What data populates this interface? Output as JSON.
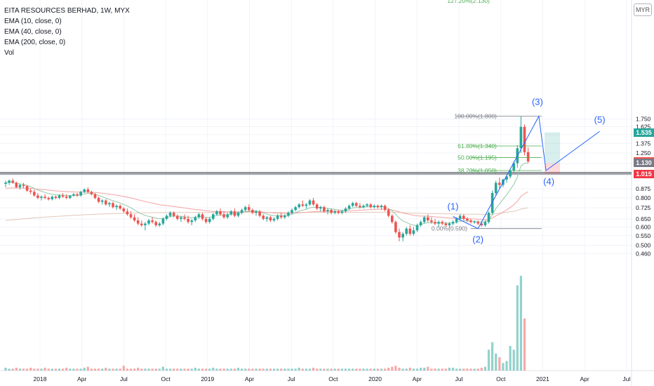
{
  "legend": {
    "title": "EITA RESOURCES BERHAD, 1W, MYX",
    "ema10": "EMA (10, close, 0)",
    "ema40": "EMA (40, close, 0)",
    "ema200": "EMA (200, close, 0)",
    "vol": "Vol"
  },
  "currency": "MYR",
  "price_tags": [
    {
      "label": "1.535",
      "value": 1.535,
      "color": "#26a69a"
    },
    {
      "label": "1.150",
      "value": 1.15,
      "color": "#ef5350"
    },
    {
      "label": "1.130",
      "value": 1.13,
      "color": "#787b86"
    },
    {
      "label": "1.015",
      "value": 1.015,
      "color": "#f23645"
    }
  ],
  "chart_data": {
    "type": "candlestick",
    "y_scale": "log",
    "y_ticks": [
      "0.460",
      "0.500",
      "0.550",
      "0.600",
      "0.650",
      "0.725",
      "0.800",
      "0.875",
      "1.000",
      "1.125",
      "1.250",
      "1.375",
      "1.500",
      "1.625",
      "1.750"
    ],
    "x_ticks": [
      "2018",
      "Apr",
      "Jul",
      "Oct",
      "2019",
      "Apr",
      "Jul",
      "Oct",
      "2020",
      "Apr",
      "Jul",
      "Oct",
      "2021",
      "Apr",
      "Jul"
    ],
    "candles_ohlc": [
      [
        0.92,
        0.95,
        0.89,
        0.93
      ],
      [
        0.93,
        0.96,
        0.91,
        0.95
      ],
      [
        0.95,
        0.97,
        0.92,
        0.93
      ],
      [
        0.93,
        0.94,
        0.88,
        0.89
      ],
      [
        0.89,
        0.92,
        0.87,
        0.91
      ],
      [
        0.91,
        0.93,
        0.88,
        0.9
      ],
      [
        0.9,
        0.91,
        0.85,
        0.86
      ],
      [
        0.86,
        0.88,
        0.83,
        0.85
      ],
      [
        0.85,
        0.87,
        0.81,
        0.82
      ],
      [
        0.82,
        0.84,
        0.79,
        0.8
      ],
      [
        0.8,
        0.82,
        0.78,
        0.81
      ],
      [
        0.81,
        0.83,
        0.79,
        0.8
      ],
      [
        0.8,
        0.81,
        0.78,
        0.79
      ],
      [
        0.79,
        0.82,
        0.78,
        0.81
      ],
      [
        0.81,
        0.82,
        0.79,
        0.8
      ],
      [
        0.8,
        0.83,
        0.79,
        0.82
      ],
      [
        0.82,
        0.84,
        0.8,
        0.81
      ],
      [
        0.81,
        0.83,
        0.79,
        0.8
      ],
      [
        0.8,
        0.82,
        0.79,
        0.82
      ],
      [
        0.82,
        0.84,
        0.81,
        0.83
      ],
      [
        0.83,
        0.84,
        0.81,
        0.82
      ],
      [
        0.82,
        0.86,
        0.81,
        0.85
      ],
      [
        0.85,
        0.88,
        0.84,
        0.87
      ],
      [
        0.87,
        0.89,
        0.84,
        0.85
      ],
      [
        0.85,
        0.86,
        0.82,
        0.83
      ],
      [
        0.83,
        0.84,
        0.79,
        0.8
      ],
      [
        0.8,
        0.81,
        0.76,
        0.77
      ],
      [
        0.77,
        0.79,
        0.75,
        0.78
      ],
      [
        0.78,
        0.79,
        0.74,
        0.75
      ],
      [
        0.75,
        0.77,
        0.73,
        0.76
      ],
      [
        0.76,
        0.77,
        0.72,
        0.73
      ],
      [
        0.73,
        0.75,
        0.71,
        0.74
      ],
      [
        0.74,
        0.75,
        0.71,
        0.72
      ],
      [
        0.72,
        0.73,
        0.69,
        0.7
      ],
      [
        0.7,
        0.72,
        0.67,
        0.68
      ],
      [
        0.68,
        0.7,
        0.65,
        0.66
      ],
      [
        0.66,
        0.68,
        0.63,
        0.64
      ],
      [
        0.64,
        0.66,
        0.61,
        0.62
      ],
      [
        0.62,
        0.64,
        0.6,
        0.61
      ],
      [
        0.61,
        0.63,
        0.58,
        0.62
      ],
      [
        0.62,
        0.65,
        0.61,
        0.64
      ],
      [
        0.64,
        0.66,
        0.62,
        0.63
      ],
      [
        0.63,
        0.64,
        0.6,
        0.61
      ],
      [
        0.61,
        0.63,
        0.6,
        0.62
      ],
      [
        0.62,
        0.66,
        0.61,
        0.65
      ],
      [
        0.65,
        0.68,
        0.64,
        0.67
      ],
      [
        0.67,
        0.7,
        0.66,
        0.69
      ],
      [
        0.69,
        0.7,
        0.66,
        0.67
      ],
      [
        0.67,
        0.68,
        0.64,
        0.65
      ],
      [
        0.65,
        0.67,
        0.63,
        0.66
      ],
      [
        0.66,
        0.68,
        0.64,
        0.65
      ],
      [
        0.65,
        0.67,
        0.62,
        0.63
      ],
      [
        0.63,
        0.65,
        0.61,
        0.64
      ],
      [
        0.64,
        0.67,
        0.63,
        0.66
      ],
      [
        0.66,
        0.69,
        0.65,
        0.68
      ],
      [
        0.68,
        0.69,
        0.64,
        0.65
      ],
      [
        0.65,
        0.66,
        0.62,
        0.63
      ],
      [
        0.63,
        0.66,
        0.62,
        0.65
      ],
      [
        0.65,
        0.69,
        0.64,
        0.68
      ],
      [
        0.68,
        0.71,
        0.67,
        0.7
      ],
      [
        0.7,
        0.72,
        0.67,
        0.68
      ],
      [
        0.68,
        0.7,
        0.65,
        0.66
      ],
      [
        0.66,
        0.69,
        0.65,
        0.68
      ],
      [
        0.68,
        0.71,
        0.67,
        0.7
      ],
      [
        0.7,
        0.72,
        0.66,
        0.67
      ],
      [
        0.67,
        0.7,
        0.66,
        0.69
      ],
      [
        0.69,
        0.72,
        0.68,
        0.71
      ],
      [
        0.71,
        0.74,
        0.7,
        0.73
      ],
      [
        0.73,
        0.75,
        0.7,
        0.71
      ],
      [
        0.71,
        0.72,
        0.68,
        0.69
      ],
      [
        0.69,
        0.71,
        0.67,
        0.7
      ],
      [
        0.7,
        0.71,
        0.66,
        0.67
      ],
      [
        0.67,
        0.68,
        0.64,
        0.65
      ],
      [
        0.65,
        0.67,
        0.63,
        0.66
      ],
      [
        0.66,
        0.67,
        0.63,
        0.64
      ],
      [
        0.64,
        0.66,
        0.63,
        0.65
      ],
      [
        0.65,
        0.68,
        0.64,
        0.67
      ],
      [
        0.67,
        0.69,
        0.65,
        0.66
      ],
      [
        0.66,
        0.68,
        0.65,
        0.67
      ],
      [
        0.67,
        0.7,
        0.66,
        0.69
      ],
      [
        0.69,
        0.72,
        0.68,
        0.71
      ],
      [
        0.71,
        0.74,
        0.7,
        0.73
      ],
      [
        0.73,
        0.76,
        0.72,
        0.75
      ],
      [
        0.75,
        0.78,
        0.73,
        0.74
      ],
      [
        0.74,
        0.76,
        0.72,
        0.75
      ],
      [
        0.75,
        0.79,
        0.74,
        0.78
      ],
      [
        0.78,
        0.8,
        0.74,
        0.75
      ],
      [
        0.75,
        0.76,
        0.71,
        0.72
      ],
      [
        0.72,
        0.74,
        0.7,
        0.73
      ],
      [
        0.73,
        0.74,
        0.69,
        0.7
      ],
      [
        0.7,
        0.72,
        0.68,
        0.71
      ],
      [
        0.71,
        0.72,
        0.68,
        0.69
      ],
      [
        0.69,
        0.71,
        0.68,
        0.7
      ],
      [
        0.7,
        0.71,
        0.68,
        0.69
      ],
      [
        0.69,
        0.71,
        0.68,
        0.7
      ],
      [
        0.7,
        0.73,
        0.69,
        0.72
      ],
      [
        0.72,
        0.75,
        0.71,
        0.74
      ],
      [
        0.74,
        0.77,
        0.73,
        0.76
      ],
      [
        0.76,
        0.77,
        0.73,
        0.74
      ],
      [
        0.74,
        0.76,
        0.72,
        0.73
      ],
      [
        0.73,
        0.75,
        0.72,
        0.74
      ],
      [
        0.74,
        0.76,
        0.73,
        0.75
      ],
      [
        0.75,
        0.76,
        0.72,
        0.73
      ],
      [
        0.73,
        0.75,
        0.72,
        0.74
      ],
      [
        0.74,
        0.75,
        0.72,
        0.73
      ],
      [
        0.73,
        0.75,
        0.71,
        0.74
      ],
      [
        0.74,
        0.75,
        0.7,
        0.71
      ],
      [
        0.71,
        0.72,
        0.66,
        0.67
      ],
      [
        0.67,
        0.68,
        0.62,
        0.63
      ],
      [
        0.63,
        0.64,
        0.56,
        0.57
      ],
      [
        0.57,
        0.59,
        0.52,
        0.54
      ],
      [
        0.54,
        0.57,
        0.52,
        0.56
      ],
      [
        0.56,
        0.6,
        0.55,
        0.59
      ],
      [
        0.59,
        0.61,
        0.55,
        0.56
      ],
      [
        0.56,
        0.6,
        0.55,
        0.58
      ],
      [
        0.58,
        0.62,
        0.57,
        0.61
      ],
      [
        0.61,
        0.64,
        0.6,
        0.63
      ],
      [
        0.63,
        0.67,
        0.62,
        0.66
      ],
      [
        0.66,
        0.68,
        0.63,
        0.64
      ],
      [
        0.64,
        0.66,
        0.62,
        0.63
      ],
      [
        0.63,
        0.65,
        0.61,
        0.62
      ],
      [
        0.62,
        0.64,
        0.6,
        0.63
      ],
      [
        0.63,
        0.64,
        0.61,
        0.62
      ],
      [
        0.62,
        0.63,
        0.6,
        0.61
      ],
      [
        0.61,
        0.63,
        0.59,
        0.62
      ],
      [
        0.62,
        0.64,
        0.61,
        0.63
      ],
      [
        0.63,
        0.66,
        0.62,
        0.65
      ],
      [
        0.65,
        0.68,
        0.64,
        0.67
      ],
      [
        0.67,
        0.68,
        0.64,
        0.65
      ],
      [
        0.65,
        0.66,
        0.63,
        0.64
      ],
      [
        0.64,
        0.65,
        0.62,
        0.63
      ],
      [
        0.63,
        0.64,
        0.62,
        0.63
      ],
      [
        0.63,
        0.64,
        0.61,
        0.62
      ],
      [
        0.62,
        0.63,
        0.6,
        0.61
      ],
      [
        0.61,
        0.64,
        0.6,
        0.63
      ],
      [
        0.63,
        0.7,
        0.62,
        0.69
      ],
      [
        0.69,
        0.86,
        0.68,
        0.84
      ],
      [
        0.84,
        0.95,
        0.82,
        0.93
      ],
      [
        0.93,
        0.98,
        0.88,
        0.91
      ],
      [
        0.91,
        0.97,
        0.89,
        0.96
      ],
      [
        0.96,
        1.0,
        0.93,
        0.99
      ],
      [
        0.99,
        1.06,
        0.97,
        1.05
      ],
      [
        1.05,
        1.15,
        1.03,
        1.13
      ],
      [
        1.13,
        1.35,
        1.08,
        1.31
      ],
      [
        1.31,
        1.8,
        1.25,
        1.62
      ],
      [
        1.62,
        1.66,
        1.22,
        1.26
      ],
      [
        1.26,
        1.32,
        1.13,
        1.15
      ]
    ],
    "volume": [
      3,
      2,
      2,
      3,
      2,
      2,
      2,
      3,
      2,
      2,
      2,
      3,
      2,
      2,
      2,
      2,
      2,
      3,
      2,
      2,
      2,
      2,
      3,
      4,
      2,
      2,
      2,
      2,
      3,
      2,
      2,
      2,
      2,
      5,
      2,
      2,
      2,
      3,
      2,
      2,
      2,
      2,
      2,
      2,
      4,
      2,
      2,
      2,
      2,
      2,
      2,
      2,
      2,
      3,
      2,
      2,
      2,
      2,
      3,
      2,
      2,
      2,
      2,
      2,
      2,
      3,
      2,
      2,
      2,
      2,
      2,
      2,
      2,
      2,
      2,
      2,
      2,
      2,
      2,
      2,
      2,
      2,
      3,
      2,
      2,
      2,
      3,
      2,
      2,
      2,
      2,
      2,
      2,
      2,
      2,
      2,
      2,
      2,
      2,
      2,
      2,
      2,
      2,
      2,
      2,
      2,
      2,
      3,
      4,
      5,
      3,
      2,
      2,
      3,
      2,
      2,
      3,
      3,
      4,
      2,
      2,
      2,
      2,
      2,
      3,
      3,
      2,
      2,
      2,
      2,
      2,
      2,
      2,
      3,
      4,
      22,
      30,
      18,
      14,
      8,
      10,
      26,
      22,
      90,
      100,
      55
    ],
    "ema10": [
      0.93,
      0.935,
      0.934,
      0.925,
      0.92,
      0.915,
      0.905,
      0.895,
      0.88,
      0.865,
      0.855,
      0.845,
      0.835,
      0.83,
      0.825,
      0.825,
      0.822,
      0.818,
      0.818,
      0.82,
      0.82,
      0.825,
      0.832,
      0.837,
      0.835,
      0.83,
      0.82,
      0.81,
      0.798,
      0.788,
      0.778,
      0.77,
      0.76,
      0.75,
      0.738,
      0.725,
      0.71,
      0.695,
      0.682,
      0.672,
      0.666,
      0.661,
      0.654,
      0.65,
      0.652,
      0.658,
      0.665,
      0.668,
      0.667,
      0.666,
      0.664,
      0.66,
      0.658,
      0.66,
      0.665,
      0.664,
      0.66,
      0.66,
      0.665,
      0.672,
      0.676,
      0.675,
      0.676,
      0.681,
      0.682,
      0.685,
      0.692,
      0.7,
      0.703,
      0.702,
      0.702,
      0.696,
      0.688,
      0.682,
      0.674,
      0.671,
      0.672,
      0.671,
      0.671,
      0.674,
      0.68,
      0.69,
      0.702,
      0.708,
      0.715,
      0.725,
      0.73,
      0.728,
      0.729,
      0.724,
      0.721,
      0.717,
      0.714,
      0.71,
      0.708,
      0.71,
      0.716,
      0.724,
      0.727,
      0.728,
      0.73,
      0.733,
      0.733,
      0.734,
      0.733,
      0.734,
      0.731,
      0.72,
      0.704,
      0.68,
      0.654,
      0.637,
      0.628,
      0.617,
      0.61,
      0.609,
      0.613,
      0.622,
      0.625,
      0.626,
      0.625,
      0.626,
      0.626,
      0.623,
      0.623,
      0.624,
      0.628,
      0.635,
      0.637,
      0.637,
      0.635,
      0.634,
      0.632,
      0.63,
      0.63,
      0.641,
      0.677,
      0.72,
      0.754,
      0.79,
      0.826,
      0.867,
      0.915,
      0.985,
      1.1,
      1.129,
      1.133
    ],
    "ema40": [
      0.88,
      0.882,
      0.883,
      0.883,
      0.883,
      0.882,
      0.881,
      0.879,
      0.877,
      0.873,
      0.87,
      0.867,
      0.864,
      0.861,
      0.858,
      0.856,
      0.854,
      0.852,
      0.85,
      0.849,
      0.847,
      0.847,
      0.847,
      0.847,
      0.846,
      0.844,
      0.841,
      0.838,
      0.834,
      0.83,
      0.826,
      0.822,
      0.817,
      0.812,
      0.806,
      0.8,
      0.793,
      0.786,
      0.779,
      0.772,
      0.766,
      0.76,
      0.754,
      0.748,
      0.744,
      0.741,
      0.738,
      0.735,
      0.731,
      0.728,
      0.724,
      0.72,
      0.716,
      0.713,
      0.711,
      0.708,
      0.704,
      0.702,
      0.7,
      0.7,
      0.699,
      0.698,
      0.697,
      0.697,
      0.696,
      0.696,
      0.697,
      0.698,
      0.699,
      0.698,
      0.698,
      0.697,
      0.695,
      0.693,
      0.691,
      0.689,
      0.688,
      0.687,
      0.686,
      0.686,
      0.687,
      0.688,
      0.69,
      0.692,
      0.693,
      0.696,
      0.698,
      0.699,
      0.7,
      0.7,
      0.701,
      0.701,
      0.701,
      0.701,
      0.701,
      0.702,
      0.704,
      0.706,
      0.707,
      0.708,
      0.709,
      0.711,
      0.712,
      0.713,
      0.714,
      0.715,
      0.715,
      0.713,
      0.71,
      0.704,
      0.696,
      0.689,
      0.684,
      0.678,
      0.673,
      0.67,
      0.668,
      0.668,
      0.667,
      0.665,
      0.663,
      0.661,
      0.659,
      0.657,
      0.655,
      0.654,
      0.653,
      0.653,
      0.653,
      0.652,
      0.65,
      0.649,
      0.647,
      0.645,
      0.644,
      0.646,
      0.655,
      0.669,
      0.681,
      0.695,
      0.71,
      0.727,
      0.747,
      0.774,
      0.813,
      0.835,
      0.85
    ],
    "ema200": [
      0.64,
      0.642,
      0.644,
      0.646,
      0.648,
      0.65,
      0.652,
      0.654,
      0.656,
      0.658,
      0.66,
      0.661,
      0.663,
      0.664,
      0.666,
      0.667,
      0.669,
      0.67,
      0.671,
      0.673,
      0.674,
      0.675,
      0.677,
      0.678,
      0.679,
      0.68,
      0.681,
      0.682,
      0.683,
      0.684,
      0.685,
      0.686,
      0.686,
      0.687,
      0.688,
      0.688,
      0.689,
      0.689,
      0.69,
      0.69,
      0.69,
      0.691,
      0.691,
      0.691,
      0.691,
      0.691,
      0.692,
      0.692,
      0.692,
      0.692,
      0.692,
      0.692,
      0.692,
      0.692,
      0.692,
      0.692,
      0.692,
      0.692,
      0.692,
      0.692,
      0.692,
      0.692,
      0.692,
      0.692,
      0.692,
      0.692,
      0.692,
      0.692,
      0.692,
      0.692,
      0.692,
      0.692,
      0.692,
      0.692,
      0.692,
      0.692,
      0.692,
      0.692,
      0.692,
      0.692,
      0.692,
      0.692,
      0.692,
      0.692,
      0.692,
      0.692,
      0.693,
      0.693,
      0.693,
      0.693,
      0.693,
      0.693,
      0.693,
      0.693,
      0.693,
      0.693,
      0.693,
      0.693,
      0.694,
      0.694,
      0.694,
      0.694,
      0.694,
      0.694,
      0.694,
      0.695,
      0.695,
      0.694,
      0.694,
      0.693,
      0.692,
      0.691,
      0.69,
      0.689,
      0.688,
      0.687,
      0.687,
      0.686,
      0.686,
      0.685,
      0.685,
      0.684,
      0.684,
      0.683,
      0.683,
      0.682,
      0.682,
      0.682,
      0.681,
      0.681,
      0.681,
      0.68,
      0.68,
      0.679,
      0.679,
      0.679,
      0.681,
      0.684,
      0.687,
      0.69,
      0.693,
      0.697,
      0.701,
      0.707,
      0.716,
      0.721,
      0.725
    ],
    "fib_levels": [
      {
        "label": "100.00%(1.800)",
        "value": 1.8
      },
      {
        "label": "61.80%(1.340)",
        "value": 1.34
      },
      {
        "label": "50.00%(1.195)",
        "value": 1.195
      },
      {
        "label": "38.20%(1.050)",
        "value": 1.05
      },
      {
        "label": "0.00%(0.590)",
        "value": 0.59
      }
    ],
    "fib_top_label": "127.20%(2.130)",
    "waves": [
      {
        "label": "(1)",
        "bar": 125,
        "value": 0.665
      },
      {
        "label": "(2)",
        "bar": 132,
        "value": 0.59
      },
      {
        "label": "(3)",
        "bar": 149,
        "value": 1.8
      },
      {
        "label": "(4)",
        "bar": 151,
        "value": 1.05
      },
      {
        "label": "(5)",
        "bar": 166,
        "value": 1.55
      }
    ],
    "horizontal_lines": [
      1.015,
      1.03
    ],
    "position": {
      "target": 1.535,
      "entry": 1.13,
      "stop": 1.015
    }
  }
}
